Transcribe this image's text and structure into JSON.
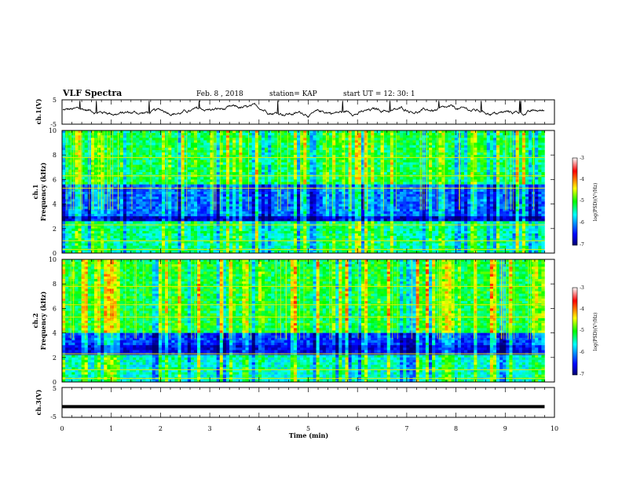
{
  "header": {
    "title": "VLF Spectra",
    "date": "Feb. 8  , 2018",
    "station": "station= KAP",
    "start_ut": "start  UT =   12: 30: 1"
  },
  "chart_data": [
    {
      "type": "line",
      "panel": "ch1-waveform",
      "ylabel": "ch.1(V)",
      "ylim": [
        -5,
        5
      ],
      "y_ticks": [
        "5",
        "-5"
      ],
      "xlim": [
        0,
        10
      ],
      "description_values": "noisy waveform oscillating roughly between -1.5 and 2 V with occasional spikes to +5 V near t=1.5 and t=2.0 min"
    },
    {
      "type": "heatmap",
      "panel": "ch1-spectrogram",
      "ylabel": "ch.1\nFrequency (kHz)",
      "ylabel_lines": [
        "ch.1",
        "Frequency  (kHz)"
      ],
      "ylim": [
        0,
        10
      ],
      "y_ticks": [
        "0",
        "2",
        "4",
        "6",
        "8",
        "10"
      ],
      "xlim": [
        0,
        10
      ],
      "data_end_min": 9.8,
      "colorbar": {
        "label": "log(PSD)(V²/Hz)",
        "range": [
          -7,
          -3
        ],
        "ticks": [
          "-3",
          "-4",
          "-5",
          "-6",
          "-7"
        ]
      }
    },
    {
      "type": "heatmap",
      "panel": "ch2-spectrogram",
      "ylabel": "ch.2\nFrequency (kHz)",
      "ylabel_lines": [
        "ch.2",
        "Frequency  (kHz)"
      ],
      "ylim": [
        0,
        10
      ],
      "y_ticks": [
        "0",
        "2",
        "4",
        "6",
        "8",
        "10"
      ],
      "xlim": [
        0,
        10
      ],
      "data_end_min": 9.8,
      "colorbar": {
        "label": "log(PSD)(V²/Hz)",
        "range": [
          -7,
          -3
        ],
        "ticks": [
          "-3",
          "-4",
          "-5",
          "-6",
          "-7"
        ]
      }
    },
    {
      "type": "line",
      "panel": "ch3-waveform",
      "ylabel": "ch.3(V)",
      "ylim": [
        -5,
        5
      ],
      "y_ticks": [
        "5",
        "-5"
      ],
      "xlim": [
        0,
        10
      ],
      "x": [
        0,
        9.8
      ],
      "y": [
        -1.5,
        -1.5
      ]
    }
  ],
  "xaxis": {
    "label": "Time  (min)",
    "ticks": [
      "0",
      "1",
      "2",
      "3",
      "4",
      "5",
      "6",
      "7",
      "8",
      "9",
      "10"
    ]
  },
  "colors": {
    "line": "#000000",
    "heat_low": "#000080",
    "heat_high": "#ff0000"
  }
}
